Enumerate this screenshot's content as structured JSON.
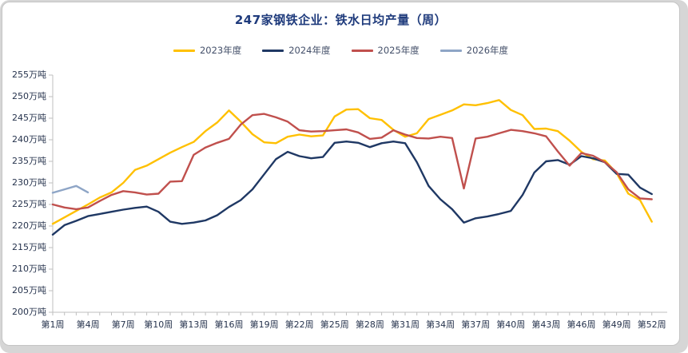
{
  "title": "247家钢铁企业：铁水日均产量（周）",
  "legend": {
    "items": [
      {
        "label": "2023年度",
        "color": "#FFC000"
      },
      {
        "label": "2024年度",
        "color": "#1F3864"
      },
      {
        "label": "2025年度",
        "color": "#C0504D"
      },
      {
        "label": "2026年度",
        "color": "#8EA5C6"
      }
    ]
  },
  "chart_data": {
    "type": "line",
    "title": "247家钢铁企业：铁水日均产量（周）",
    "unit": "万吨",
    "x_unit_prefix": "第",
    "x_unit_suffix": "周",
    "ylim": [
      200,
      255
    ],
    "y_ticks": [
      255,
      250,
      245,
      240,
      235,
      230,
      225,
      220,
      215,
      210,
      205,
      200
    ],
    "x_ticks_weeks": [
      1,
      4,
      7,
      10,
      13,
      16,
      19,
      22,
      25,
      28,
      31,
      34,
      37,
      40,
      43,
      46,
      49,
      52
    ],
    "weeks_total": 52,
    "grid": false,
    "legend_position": "top-center",
    "series": [
      {
        "name": "2023年度",
        "color": "#FFC000",
        "start_week": 1,
        "values": [
          220.5,
          222.0,
          223.5,
          225.0,
          226.6,
          227.8,
          230.0,
          233.0,
          234.0,
          235.5,
          237.0,
          238.3,
          239.5,
          242.0,
          244.0,
          246.8,
          244.2,
          241.3,
          239.4,
          239.2,
          240.7,
          241.2,
          240.8,
          241.0,
          245.4,
          247.0,
          247.1,
          245.0,
          244.6,
          242.3,
          240.7,
          241.5,
          244.8,
          245.8,
          246.8,
          248.2,
          248.0,
          248.5,
          249.2,
          246.9,
          245.7,
          242.5,
          242.6,
          242.0,
          239.8,
          237.2,
          235.5,
          235.2,
          232.3,
          227.5,
          226.0,
          221.0
        ]
      },
      {
        "name": "2024年度",
        "color": "#1F3864",
        "start_week": 1,
        "values": [
          218.0,
          220.2,
          221.2,
          222.3,
          222.8,
          223.3,
          223.8,
          224.2,
          224.5,
          223.3,
          221.0,
          220.5,
          220.8,
          221.3,
          222.5,
          224.4,
          226.0,
          228.5,
          232.0,
          235.5,
          237.2,
          236.2,
          235.7,
          236.0,
          239.3,
          239.6,
          239.3,
          238.3,
          239.2,
          239.6,
          239.2,
          234.8,
          229.3,
          226.2,
          223.9,
          220.8,
          221.8,
          222.2,
          222.8,
          223.5,
          227.2,
          232.4,
          235.0,
          235.3,
          234.2,
          236.2,
          235.7,
          234.8,
          232.1,
          231.9,
          228.9,
          227.4
        ]
      },
      {
        "name": "2025年度",
        "color": "#C0504D",
        "start_week": 1,
        "values": [
          225.0,
          224.3,
          223.9,
          224.3,
          225.8,
          227.2,
          228.1,
          227.8,
          227.3,
          227.5,
          230.3,
          230.4,
          236.5,
          238.2,
          239.3,
          240.2,
          243.5,
          245.7,
          246.0,
          245.2,
          244.2,
          242.2,
          241.9,
          242.0,
          242.2,
          242.4,
          241.7,
          240.2,
          240.5,
          242.2,
          241.2,
          240.4,
          240.3,
          240.7,
          240.4,
          228.7,
          240.3,
          240.7,
          241.5,
          242.3,
          242.0,
          241.5,
          240.8,
          237.3,
          234.0,
          236.9,
          236.3,
          234.8,
          232.5,
          228.5,
          226.4,
          226.2
        ]
      },
      {
        "name": "2026年度",
        "color": "#8EA5C6",
        "start_week": 1,
        "values": [
          227.7,
          228.5,
          229.3,
          227.8
        ]
      }
    ]
  }
}
